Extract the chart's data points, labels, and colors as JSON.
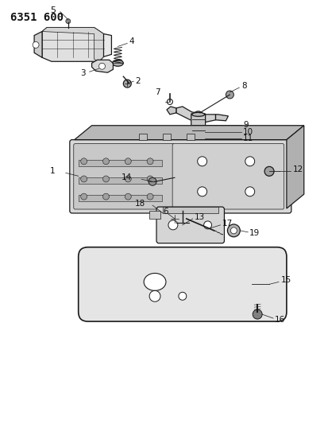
{
  "title": "6351 600",
  "title_fontsize": 10,
  "title_fontweight": "bold",
  "title_fontfamily": "monospace",
  "bg_color": "#ffffff",
  "line_color": "#1a1a1a",
  "label_color": "#111111",
  "label_fontsize": 7,
  "figsize": [
    4.08,
    5.33
  ],
  "dpi": 100,
  "lw_main": 0.9,
  "lw_thin": 0.5,
  "lw_thick": 1.2
}
